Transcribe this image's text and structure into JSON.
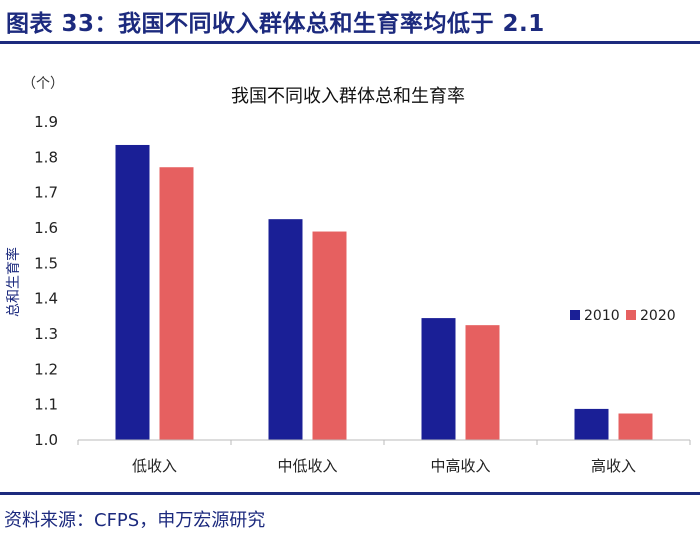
{
  "figure": {
    "title": "图表 33：我国不同收入群体总和生育率均低于 2.1",
    "source": "资料来源：CFPS，申万宏源研究"
  },
  "chart_data": {
    "type": "bar",
    "title": "我国不同收入群体总和生育率",
    "unit": "（个）",
    "ylabel": "总和生育率",
    "xlabel": "",
    "categories": [
      "低收入",
      "中低收入",
      "中高收入",
      "高收入"
    ],
    "series": [
      {
        "name": "2010",
        "color": "#1a1f96",
        "values": [
          1.835,
          1.625,
          1.345,
          1.088
        ]
      },
      {
        "name": "2020",
        "color": "#e66060",
        "values": [
          1.772,
          1.59,
          1.325,
          1.075
        ]
      }
    ],
    "ylim": [
      1.0,
      1.9
    ],
    "yticks": [
      "1.0",
      "1.1",
      "1.2",
      "1.3",
      "1.4",
      "1.5",
      "1.6",
      "1.7",
      "1.8",
      "1.9"
    ],
    "grid": false,
    "legend_position": "right"
  }
}
